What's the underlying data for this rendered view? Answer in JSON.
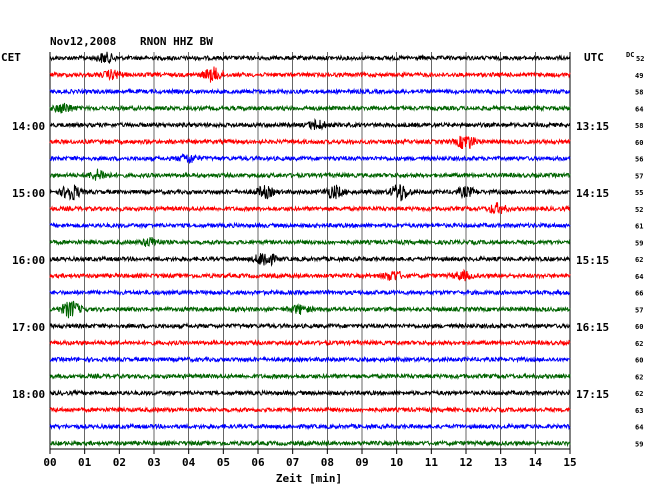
{
  "header": {
    "date": "Nov12,2008",
    "station": "RNON HHZ BW",
    "left_zone": "CET",
    "right_zone": "UTC",
    "dc_label": "DC"
  },
  "chart_data": {
    "type": "line",
    "title": "Nov12,2008   RNON HHZ BW",
    "xlabel": "Zeit [min]",
    "xlim": [
      0,
      15
    ],
    "x_ticks": [
      "00",
      "01",
      "02",
      "03",
      "04",
      "05",
      "06",
      "07",
      "08",
      "09",
      "10",
      "11",
      "12",
      "13",
      "14",
      "15"
    ],
    "row_minutes": 15,
    "row_count": 24,
    "colors": [
      "#000000",
      "#ff0000",
      "#0000ff",
      "#006400"
    ],
    "left_hour_labels": [
      {
        "row": 4,
        "text": "14:00"
      },
      {
        "row": 8,
        "text": "15:00"
      },
      {
        "row": 12,
        "text": "16:00"
      },
      {
        "row": 16,
        "text": "17:00"
      },
      {
        "row": 20,
        "text": "18:00"
      }
    ],
    "right_hour_labels": [
      {
        "row": 4,
        "text": "13:15"
      },
      {
        "row": 8,
        "text": "14:15"
      },
      {
        "row": 12,
        "text": "15:15"
      },
      {
        "row": 16,
        "text": "16:15"
      },
      {
        "row": 20,
        "text": "17:15"
      }
    ],
    "dc_values": [
      "52",
      "49",
      "58",
      "64",
      "58",
      "60",
      "56",
      "57",
      "55",
      "52",
      "61",
      "59",
      "62",
      "64",
      "66",
      "57",
      "60",
      "62",
      "60",
      "62",
      "62",
      "63",
      "64",
      "59"
    ],
    "events": [
      {
        "row": 0,
        "minute": 1.6,
        "amp": 1.4
      },
      {
        "row": 1,
        "minute": 4.7,
        "amp": 2.0
      },
      {
        "row": 1,
        "minute": 1.8,
        "amp": 1.2
      },
      {
        "row": 3,
        "minute": 0.4,
        "amp": 1.3
      },
      {
        "row": 4,
        "minute": 7.7,
        "amp": 1.3
      },
      {
        "row": 5,
        "minute": 12.0,
        "amp": 2.2
      },
      {
        "row": 6,
        "minute": 4.0,
        "amp": 1.2
      },
      {
        "row": 7,
        "minute": 1.4,
        "amp": 1.5
      },
      {
        "row": 8,
        "minute": 0.6,
        "amp": 2.4
      },
      {
        "row": 8,
        "minute": 6.2,
        "amp": 1.6
      },
      {
        "row": 8,
        "minute": 8.2,
        "amp": 1.8
      },
      {
        "row": 8,
        "minute": 10.1,
        "amp": 2.6
      },
      {
        "row": 8,
        "minute": 12.0,
        "amp": 1.3
      },
      {
        "row": 9,
        "minute": 12.9,
        "amp": 1.4
      },
      {
        "row": 11,
        "minute": 2.9,
        "amp": 1.2
      },
      {
        "row": 12,
        "minute": 6.2,
        "amp": 2.4
      },
      {
        "row": 13,
        "minute": 9.9,
        "amp": 1.4
      },
      {
        "row": 13,
        "minute": 11.9,
        "amp": 1.2
      },
      {
        "row": 15,
        "minute": 0.6,
        "amp": 2.4
      },
      {
        "row": 15,
        "minute": 7.2,
        "amp": 1.2
      }
    ]
  }
}
